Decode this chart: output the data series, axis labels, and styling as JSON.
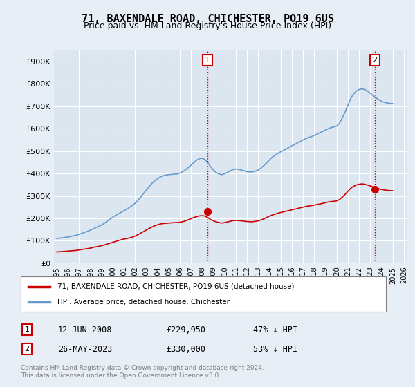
{
  "title": "71, BAXENDALE ROAD, CHICHESTER, PO19 6US",
  "subtitle": "Price paid vs. HM Land Registry's House Price Index (HPI)",
  "legend_line1": "71, BAXENDALE ROAD, CHICHESTER, PO19 6US (detached house)",
  "legend_line2": "HPI: Average price, detached house, Chichester",
  "transaction1_label": "1",
  "transaction1_date": "12-JUN-2008",
  "transaction1_price": "£229,950",
  "transaction1_hpi": "47% ↓ HPI",
  "transaction2_label": "2",
  "transaction2_date": "26-MAY-2023",
  "transaction2_price": "£330,000",
  "transaction2_hpi": "53% ↓ HPI",
  "footer": "Contains HM Land Registry data © Crown copyright and database right 2024.\nThis data is licensed under the Open Government Licence v3.0.",
  "hpi_color": "#6699cc",
  "price_paid_color": "#cc0000",
  "marker_color": "#cc0000",
  "annotation_box_color": "#cc0000",
  "background_color": "#e8eef5",
  "plot_bg_color": "#dce6f0",
  "ylim": [
    0,
    950000
  ],
  "yticks": [
    0,
    100000,
    200000,
    300000,
    400000,
    500000,
    600000,
    700000,
    800000,
    900000
  ],
  "ytick_labels": [
    "£0",
    "£100K",
    "£200K",
    "£300K",
    "£400K",
    "£500K",
    "£600K",
    "£700K",
    "£800K",
    "£900K"
  ],
  "x_start_year": 1995,
  "x_end_year": 2026,
  "transaction1_year": 2008.45,
  "transaction2_year": 2023.4,
  "transaction1_value": 229950,
  "transaction2_value": 330000,
  "hpi_years": [
    1995.0,
    1995.25,
    1995.5,
    1995.75,
    1996.0,
    1996.25,
    1996.5,
    1996.75,
    1997.0,
    1997.25,
    1997.5,
    1997.75,
    1998.0,
    1998.25,
    1998.5,
    1998.75,
    1999.0,
    1999.25,
    1999.5,
    1999.75,
    2000.0,
    2000.25,
    2000.5,
    2000.75,
    2001.0,
    2001.25,
    2001.5,
    2001.75,
    2002.0,
    2002.25,
    2002.5,
    2002.75,
    2003.0,
    2003.25,
    2003.5,
    2003.75,
    2004.0,
    2004.25,
    2004.5,
    2004.75,
    2005.0,
    2005.25,
    2005.5,
    2005.75,
    2006.0,
    2006.25,
    2006.5,
    2006.75,
    2007.0,
    2007.25,
    2007.5,
    2007.75,
    2008.0,
    2008.25,
    2008.5,
    2008.75,
    2009.0,
    2009.25,
    2009.5,
    2009.75,
    2010.0,
    2010.25,
    2010.5,
    2010.75,
    2011.0,
    2011.25,
    2011.5,
    2011.75,
    2012.0,
    2012.25,
    2012.5,
    2012.75,
    2013.0,
    2013.25,
    2013.5,
    2013.75,
    2014.0,
    2014.25,
    2014.5,
    2014.75,
    2015.0,
    2015.25,
    2015.5,
    2015.75,
    2016.0,
    2016.25,
    2016.5,
    2016.75,
    2017.0,
    2017.25,
    2017.5,
    2017.75,
    2018.0,
    2018.25,
    2018.5,
    2018.75,
    2019.0,
    2019.25,
    2019.5,
    2019.75,
    2020.0,
    2020.25,
    2020.5,
    2020.75,
    2021.0,
    2021.25,
    2021.5,
    2021.75,
    2022.0,
    2022.25,
    2022.5,
    2022.75,
    2023.0,
    2023.25,
    2023.5,
    2023.75,
    2024.0,
    2024.25,
    2024.5,
    2024.75,
    2025.0
  ],
  "hpi_values": [
    110000,
    112000,
    113000,
    115000,
    117000,
    119000,
    122000,
    125000,
    129000,
    133000,
    138000,
    142000,
    147000,
    153000,
    159000,
    164000,
    170000,
    178000,
    187000,
    196000,
    205000,
    213000,
    220000,
    227000,
    234000,
    241000,
    249000,
    257000,
    267000,
    280000,
    295000,
    311000,
    326000,
    341000,
    356000,
    368000,
    377000,
    385000,
    390000,
    393000,
    395000,
    396000,
    397000,
    398000,
    402000,
    408000,
    417000,
    427000,
    438000,
    450000,
    460000,
    467000,
    468000,
    462000,
    448000,
    430000,
    415000,
    404000,
    398000,
    395000,
    399000,
    405000,
    412000,
    418000,
    420000,
    419000,
    415000,
    412000,
    408000,
    407000,
    408000,
    411000,
    416000,
    425000,
    436000,
    448000,
    461000,
    473000,
    482000,
    490000,
    497000,
    503000,
    510000,
    517000,
    524000,
    530000,
    537000,
    543000,
    550000,
    556000,
    561000,
    565000,
    570000,
    576000,
    582000,
    588000,
    594000,
    600000,
    605000,
    608000,
    612000,
    625000,
    648000,
    675000,
    705000,
    735000,
    755000,
    768000,
    775000,
    778000,
    775000,
    768000,
    758000,
    748000,
    738000,
    730000,
    723000,
    718000,
    715000,
    713000,
    712000
  ],
  "pricepaid_years": [
    1995.0,
    1995.25,
    1995.5,
    1995.75,
    1996.0,
    1996.25,
    1996.5,
    1996.75,
    1997.0,
    1997.25,
    1997.5,
    1997.75,
    1998.0,
    1998.25,
    1998.5,
    1998.75,
    1999.0,
    1999.25,
    1999.5,
    1999.75,
    2000.0,
    2000.25,
    2000.5,
    2000.75,
    2001.0,
    2001.25,
    2001.5,
    2001.75,
    2002.0,
    2002.25,
    2002.5,
    2002.75,
    2003.0,
    2003.25,
    2003.5,
    2003.75,
    2004.0,
    2004.25,
    2004.5,
    2004.75,
    2005.0,
    2005.25,
    2005.5,
    2005.75,
    2006.0,
    2006.25,
    2006.5,
    2006.75,
    2007.0,
    2007.25,
    2007.5,
    2007.75,
    2008.0,
    2008.25,
    2008.5,
    2008.75,
    2009.0,
    2009.25,
    2009.5,
    2009.75,
    2010.0,
    2010.25,
    2010.5,
    2010.75,
    2011.0,
    2011.25,
    2011.5,
    2011.75,
    2012.0,
    2012.25,
    2012.5,
    2012.75,
    2013.0,
    2013.25,
    2013.5,
    2013.75,
    2014.0,
    2014.25,
    2014.5,
    2014.75,
    2015.0,
    2015.25,
    2015.5,
    2015.75,
    2016.0,
    2016.25,
    2016.5,
    2016.75,
    2017.0,
    2017.25,
    2017.5,
    2017.75,
    2018.0,
    2018.25,
    2018.5,
    2018.75,
    2019.0,
    2019.25,
    2019.5,
    2019.75,
    2020.0,
    2020.25,
    2020.5,
    2020.75,
    2021.0,
    2021.25,
    2021.5,
    2021.75,
    2022.0,
    2022.25,
    2022.5,
    2022.75,
    2023.0,
    2023.25,
    2023.5,
    2023.75,
    2024.0,
    2024.25,
    2024.5,
    2024.75,
    2025.0
  ],
  "pricepaid_values": [
    50000,
    51000,
    52000,
    53000,
    54000,
    55000,
    56000,
    57000,
    59000,
    61000,
    63000,
    65000,
    67000,
    70000,
    73000,
    75000,
    78000,
    81000,
    85000,
    89000,
    93000,
    97000,
    101000,
    104000,
    108000,
    110000,
    113000,
    116000,
    121000,
    127000,
    134000,
    141000,
    148000,
    155000,
    161000,
    167000,
    171000,
    175000,
    177000,
    178000,
    179000,
    180000,
    181000,
    181000,
    183000,
    185000,
    189000,
    194000,
    199000,
    204000,
    208000,
    211000,
    212000,
    210000,
    203000,
    195000,
    189000,
    184000,
    181000,
    179000,
    181000,
    184000,
    187000,
    190000,
    191000,
    190000,
    189000,
    187000,
    186000,
    185000,
    185000,
    187000,
    189000,
    193000,
    198000,
    204000,
    210000,
    215000,
    219000,
    223000,
    226000,
    229000,
    232000,
    235000,
    238000,
    241000,
    244000,
    247000,
    250000,
    253000,
    255000,
    257000,
    259000,
    262000,
    264000,
    267000,
    270000,
    273000,
    275000,
    276000,
    278000,
    284000,
    295000,
    307000,
    321000,
    334000,
    343000,
    349000,
    352000,
    354000,
    352000,
    349000,
    345000,
    340000,
    336000,
    332000,
    329000,
    327000,
    325000,
    324000,
    323000
  ]
}
